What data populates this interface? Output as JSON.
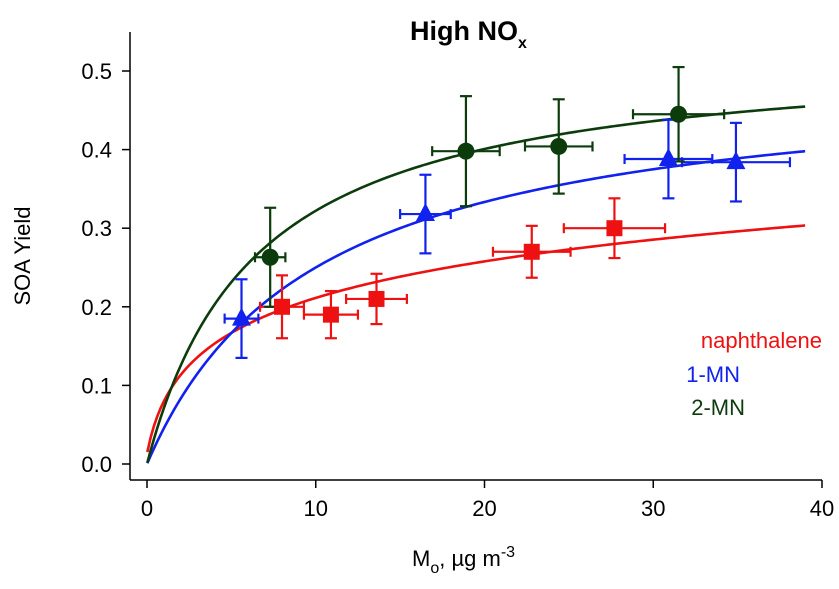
{
  "chart_data": {
    "type": "scatter",
    "title": {
      "main": "High NO",
      "subscript": "x"
    },
    "xlabel": {
      "main": "M",
      "subscript": "o",
      "rest": ", µg m",
      "superscript": "-3"
    },
    "ylabel": "SOA Yield",
    "xlim": [
      0,
      40
    ],
    "ylim": [
      0,
      0.55
    ],
    "x_ticks": [
      0,
      10,
      20,
      30,
      40
    ],
    "x_tick_labels": [
      "0",
      "10",
      "20",
      "30",
      "40"
    ],
    "y_ticks": [
      0.0,
      0.1,
      0.2,
      0.3,
      0.4,
      0.5
    ],
    "y_tick_labels": [
      "0.0",
      "0.1",
      "0.2",
      "0.3",
      "0.4",
      "0.5"
    ],
    "grid": false,
    "legend_position": "right",
    "series": [
      {
        "name": "naphthalene",
        "color": "#ee1111",
        "marker": "square",
        "points": [
          {
            "x": 8.0,
            "y": 0.2,
            "xerr": 1.3,
            "yerr": 0.04
          },
          {
            "x": 10.9,
            "y": 0.19,
            "xerr": 1.6,
            "yerr": 0.03
          },
          {
            "x": 13.6,
            "y": 0.21,
            "xerr": 1.8,
            "yerr": 0.032
          },
          {
            "x": 22.8,
            "y": 0.27,
            "xerr": 2.3,
            "yerr": 0.033
          },
          {
            "x": 27.7,
            "y": 0.3,
            "xerr": 3.0,
            "yerr": 0.038
          }
        ],
        "fit_params": {
          "a": 0.36,
          "b": 0.3,
          "k": 0.1
        }
      },
      {
        "name": "1-MN",
        "color": "#1122ee",
        "marker": "triangle",
        "points": [
          {
            "x": 5.6,
            "y": 0.185,
            "xerr": 1.0,
            "yerr": 0.05
          },
          {
            "x": 16.5,
            "y": 0.318,
            "xerr": 1.5,
            "yerr": 0.05
          },
          {
            "x": 30.9,
            "y": 0.388,
            "xerr": 2.6,
            "yerr": 0.05
          },
          {
            "x": 34.9,
            "y": 0.384,
            "xerr": 3.2,
            "yerr": 0.05
          }
        ],
        "fit_params": {
          "a": 0.5,
          "b": 0.1
        }
      },
      {
        "name": "2-MN",
        "color": "#0c3c0c",
        "marker": "circle",
        "points": [
          {
            "x": 7.3,
            "y": 0.263,
            "xerr": 0.9,
            "yerr": 0.063
          },
          {
            "x": 18.9,
            "y": 0.398,
            "xerr": 2.0,
            "yerr": 0.07
          },
          {
            "x": 24.4,
            "y": 0.404,
            "xerr": 2.0,
            "yerr": 0.06
          },
          {
            "x": 31.5,
            "y": 0.445,
            "xerr": 2.7,
            "yerr": 0.06
          }
        ],
        "fit_params": {
          "a": 0.53,
          "b": 0.155
        }
      }
    ]
  }
}
